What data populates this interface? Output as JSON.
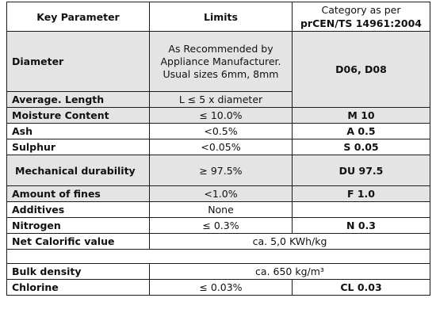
{
  "headers": {
    "param": "Key Parameter",
    "limits": "Limits",
    "category_line1": "Category as per",
    "category_line2": "prCEN/TS 14961:2004"
  },
  "rows": [
    {
      "param": "Diameter",
      "limit": "As Recommended by Appliance Manufacturer. Usual sizes 6mm, 8mm",
      "category": "D06, D08"
    },
    {
      "param": "Average. Length",
      "limit": "L ≤ 5 x diameter",
      "category": ""
    },
    {
      "param": "Moisture Content",
      "limit": "≤ 10.0%",
      "category": "M 10"
    },
    {
      "param": "Ash",
      "limit": "<0.5%",
      "category": "A 0.5"
    },
    {
      "param": "Sulphur",
      "limit": "<0.05%",
      "category": "S 0.05"
    },
    {
      "param": "Mechanical durability",
      "limit": "≥ 97.5%",
      "category": "DU 97.5"
    },
    {
      "param": "Amount of fines",
      "limit": "<1.0%",
      "category": "F 1.0"
    },
    {
      "param": "Additives",
      "limit": "None",
      "category": ""
    },
    {
      "param": "Nitrogen",
      "limit": "≤ 0.3%",
      "category": "N 0.3"
    },
    {
      "param": "Net Calorific value",
      "limit": "ca. 5,0 KWh/kg",
      "category": ""
    },
    {
      "param": "Bulk density",
      "limit": "ca. 650 kg/m³",
      "category": ""
    },
    {
      "param": "Chlorine",
      "limit": "≤ 0.03%",
      "category": "CL 0.03"
    }
  ]
}
